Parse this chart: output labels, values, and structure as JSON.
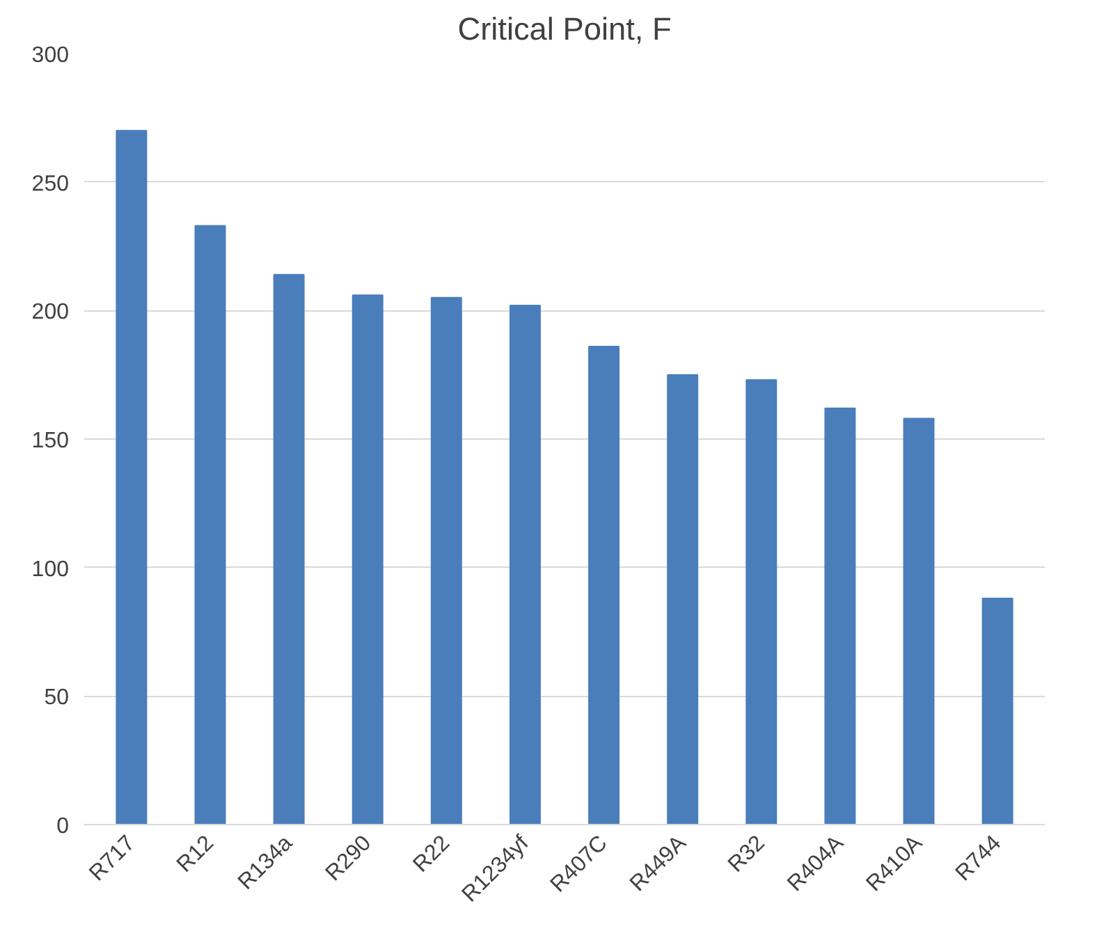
{
  "chart_data": {
    "type": "bar",
    "title": "Critical Point, F",
    "categories": [
      "R717",
      "R12",
      "R134a",
      "R290",
      "R22",
      "R1234yf",
      "R407C",
      "R449A",
      "R32",
      "R404A",
      "R410A",
      "R744"
    ],
    "values": [
      270,
      233,
      214,
      206,
      205,
      202,
      186,
      175,
      173,
      162,
      158,
      88
    ],
    "color": "#4a7ebb",
    "ylim": [
      0,
      300
    ],
    "yticks": [
      0,
      50,
      100,
      150,
      200,
      250,
      300
    ],
    "grid": "y"
  }
}
